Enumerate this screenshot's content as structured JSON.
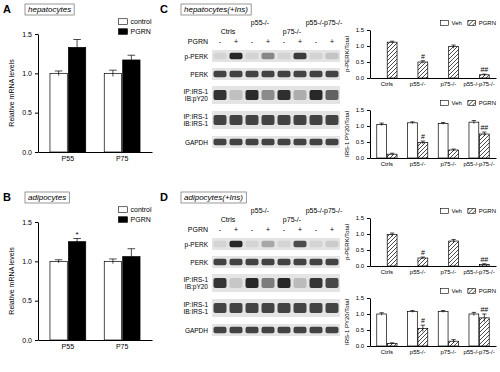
{
  "panels": [
    {
      "label": "A",
      "title": "hepatocytes"
    },
    {
      "label": "B",
      "title": "adipocytes"
    },
    {
      "label": "C",
      "title": "hepatocytes(+Ins)"
    },
    {
      "label": "D",
      "title": "adipocytes(+Ins)"
    }
  ],
  "blots": [
    {
      "treatment": "PGRN",
      "signs": [
        "-",
        "+",
        "-",
        "+",
        "-",
        "+",
        "-",
        "+"
      ],
      "groups": [
        "Ctrls",
        "p55-/-",
        "p75-/-",
        "p55-/-p75-/-"
      ],
      "rows": [
        [
          "p-PERK"
        ],
        [
          "PERK"
        ],
        [
          "IP:IRS-1",
          "IB:pY20"
        ],
        [
          "IP:IRS-1",
          "IB:IRS-1"
        ],
        [
          "GAPDH"
        ]
      ]
    },
    {
      "treatment": "PGRN",
      "signs": [
        "-",
        "+",
        "-",
        "+",
        "-",
        "+",
        "-",
        "+"
      ],
      "groups": [
        "Ctrls",
        "p55-/-",
        "p75-/-",
        "p55-/-p75-/-"
      ],
      "rows": [
        [
          "p-PERK"
        ],
        [
          "PERK"
        ],
        [
          "IP:IRS-1",
          "IB:pY20"
        ],
        [
          "IP:IRS-1",
          "IB:IRS-1"
        ],
        [
          "GAPDH"
        ]
      ]
    }
  ],
  "chart_data": [
    {
      "type": "bar",
      "ylabel": "Relative mRNA levels",
      "categories": [
        "P55",
        "P75"
      ],
      "series": [
        {
          "name": "control",
          "color": "#ffffff",
          "values": [
            1.0,
            1.0
          ],
          "errors": [
            0.03,
            0.04
          ]
        },
        {
          "name": "PGRN",
          "color": "#000000",
          "values": [
            1.33,
            1.17
          ],
          "errors": [
            0.1,
            0.06
          ]
        }
      ],
      "ylim": [
        0,
        1.5
      ],
      "yticks": [
        {
          "value": 0,
          "label": "0.0"
        },
        {
          "value": 0.5,
          "label": "0.5"
        },
        {
          "value": 1,
          "label": "1.0"
        },
        {
          "value": 1.5,
          "label": "1.5"
        }
      ],
      "legend": "upper right"
    },
    {
      "type": "bar",
      "ylabel": "Relative mRNA levels",
      "categories": [
        "P55",
        "P75"
      ],
      "series": [
        {
          "name": "control",
          "color": "#ffffff",
          "values": [
            1.0,
            1.0
          ],
          "errors": [
            0.02,
            0.03
          ]
        },
        {
          "name": "PGRN",
          "color": "#000000",
          "values": [
            1.25,
            1.06
          ],
          "errors": [
            0.04,
            0.1
          ],
          "annotations": [
            "*",
            null
          ]
        }
      ],
      "ylim": [
        0,
        1.5
      ],
      "yticks": [
        {
          "value": 0,
          "label": "0.0"
        },
        {
          "value": 0.5,
          "label": "0.5"
        },
        {
          "value": 1,
          "label": "1.0"
        },
        {
          "value": 1.5,
          "label": "1.5"
        }
      ],
      "legend": "upper right"
    },
    {
      "type": "bar",
      "ylabel": "p-PERK/Total",
      "categories": [
        "Ctrls",
        "p55-/-",
        "p75-/-",
        "p55-/-p75-/-"
      ],
      "series": [
        {
          "name": "Veh",
          "color": "#ffffff",
          "values": [
            0,
            0,
            0,
            0
          ]
        },
        {
          "name": "PGRN",
          "color": "#ffffff",
          "values": [
            1.12,
            0.5,
            0.98,
            0.1
          ],
          "errors": [
            0.03,
            0.04,
            0.05,
            0.02
          ],
          "annotations": [
            null,
            "#",
            null,
            "##"
          ]
        }
      ],
      "ylim": [
        0,
        1.5
      ],
      "yticks": [
        {
          "value": 0,
          "label": "0.0"
        },
        {
          "value": 0.5,
          "label": "0.5"
        },
        {
          "value": 1,
          "label": "1.0"
        },
        {
          "value": 1.5,
          "label": "1.5"
        }
      ],
      "legend": "upper right"
    },
    {
      "type": "bar",
      "ylabel": "IRS-1 PY20/Total",
      "categories": [
        "Ctrls",
        "p55-/-",
        "p75-/-",
        "p55-/-p75-/-"
      ],
      "series": [
        {
          "name": "Veh",
          "color": "#ffffff",
          "values": [
            1.05,
            1.1,
            1.08,
            1.12
          ],
          "errors": [
            0.04,
            0.03,
            0.03,
            0.05
          ]
        },
        {
          "name": "PGRN",
          "color": "#ffffff",
          "values": [
            0.12,
            0.48,
            0.25,
            0.75
          ],
          "errors": [
            0.03,
            0.05,
            0.03,
            0.06
          ],
          "annotations": [
            null,
            "#",
            null,
            "##"
          ]
        }
      ],
      "ylim": [
        0,
        1.5
      ],
      "yticks": [
        {
          "value": 0,
          "label": "0.0"
        },
        {
          "value": 0.5,
          "label": "0.5"
        },
        {
          "value": 1,
          "label": "1.0"
        },
        {
          "value": 1.5,
          "label": "1.5"
        }
      ],
      "legend": "upper right"
    },
    {
      "type": "bar",
      "ylabel": "p-PERK/Total",
      "categories": [
        "Ctrls",
        "p55-/-",
        "p75-/-",
        "p55-/-p75-/-"
      ],
      "series": [
        {
          "name": "Veh",
          "color": "#ffffff",
          "values": [
            0,
            0,
            0,
            0
          ]
        },
        {
          "name": "PGRN",
          "color": "#ffffff",
          "values": [
            0.98,
            0.25,
            0.78,
            0.05
          ],
          "errors": [
            0.05,
            0.03,
            0.05,
            0.02
          ],
          "annotations": [
            null,
            "#",
            null,
            "##"
          ]
        }
      ],
      "ylim": [
        0,
        1.5
      ],
      "yticks": [
        {
          "value": 0,
          "label": "0.0"
        },
        {
          "value": 0.5,
          "label": "0.5"
        },
        {
          "value": 1,
          "label": "1.0"
        },
        {
          "value": 1.5,
          "label": "1.5"
        }
      ],
      "legend": "upper right"
    },
    {
      "type": "bar",
      "ylabel": "IRS-1 PY20/Total",
      "categories": [
        "Ctrls",
        "p55-/-",
        "p75-/-",
        "p55-/-p75-/-"
      ],
      "series": [
        {
          "name": "Veh",
          "color": "#ffffff",
          "values": [
            1.0,
            1.08,
            1.08,
            1.0
          ],
          "errors": [
            0.04,
            0.03,
            0.03,
            0.05
          ]
        },
        {
          "name": "PGRN",
          "color": "#ffffff",
          "values": [
            0.08,
            0.55,
            0.15,
            0.88
          ],
          "errors": [
            0.02,
            0.1,
            0.05,
            0.12
          ],
          "annotations": [
            null,
            "#",
            null,
            "##"
          ]
        }
      ],
      "ylim": [
        0,
        1.5
      ],
      "yticks": [
        {
          "value": 0,
          "label": "0.0"
        },
        {
          "value": 0.5,
          "label": "0.5"
        },
        {
          "value": 1,
          "label": "1.0"
        },
        {
          "value": 1.5,
          "label": "1.5"
        }
      ],
      "legend": "upper right"
    }
  ]
}
